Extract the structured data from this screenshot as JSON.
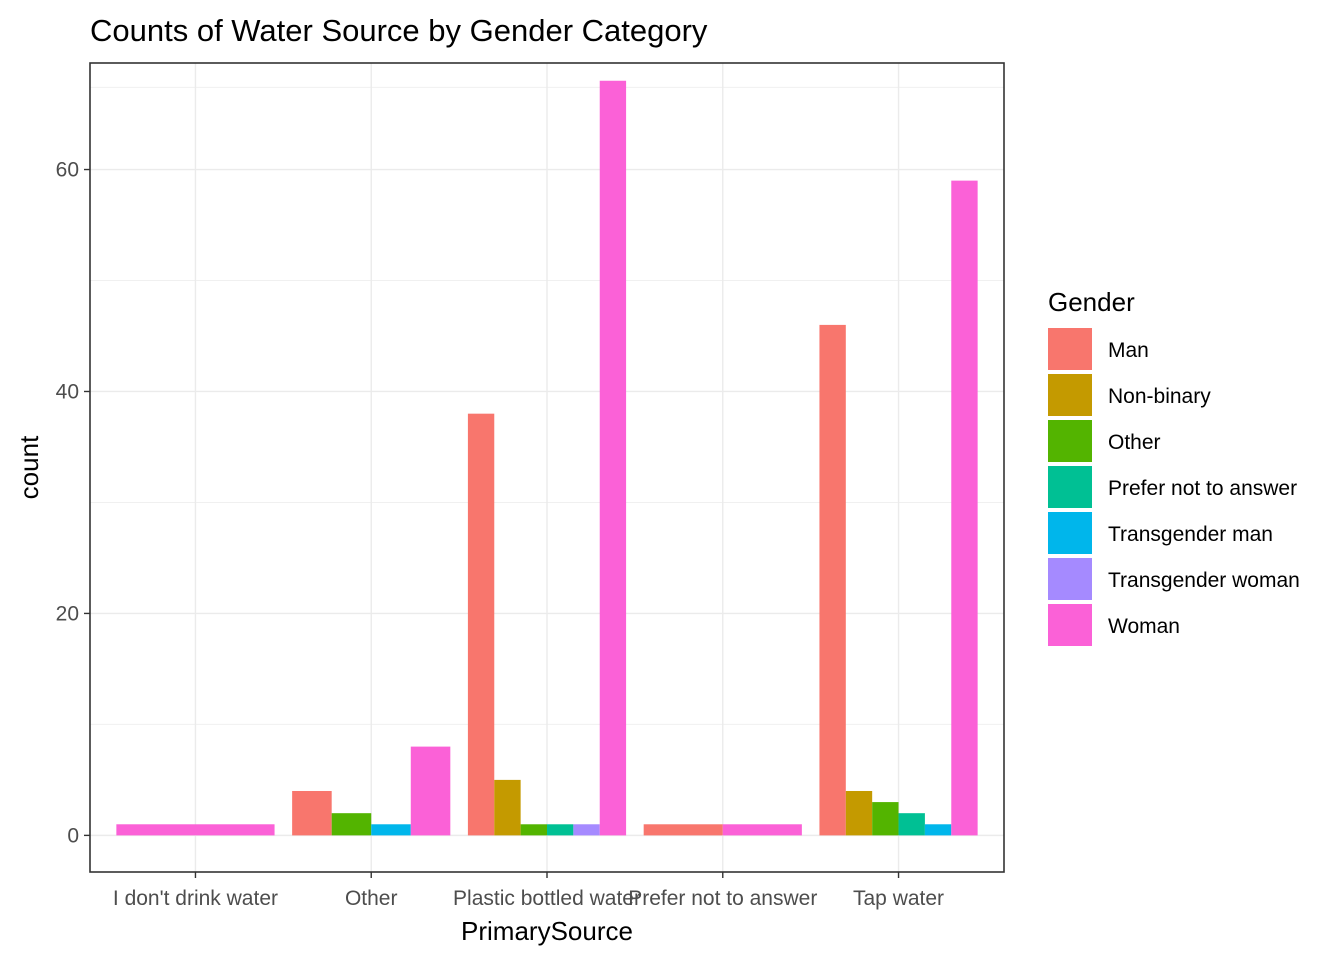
{
  "chart_data": {
    "type": "bar",
    "title": "Counts of Water Source by Gender Category",
    "xlabel": "PrimarySource",
    "ylabel": "count",
    "categories": [
      "I don't drink water",
      "Other",
      "Plastic bottled water",
      "Prefer not to answer",
      "Tap water"
    ],
    "y_ticks": [
      "0",
      "20",
      "40",
      "60"
    ],
    "ylim": [
      -3.3,
      69.6
    ],
    "grid": true,
    "legend": {
      "title": "Gender",
      "position": "right"
    },
    "series": [
      {
        "name": "Man",
        "color": "#F8766D"
      },
      {
        "name": "Non-binary",
        "color": "#C49A00"
      },
      {
        "name": "Other",
        "color": "#53B400"
      },
      {
        "name": "Prefer not to answer",
        "color": "#00C094"
      },
      {
        "name": "Transgender man",
        "color": "#00B6EB"
      },
      {
        "name": "Transgender woman",
        "color": "#A58AFF"
      },
      {
        "name": "Woman",
        "color": "#FB61D7"
      }
    ],
    "bars": [
      {
        "category": "I don't drink water",
        "groups": [
          {
            "series": "Woman",
            "value": 1
          }
        ]
      },
      {
        "category": "Other",
        "groups": [
          {
            "series": "Man",
            "value": 4
          },
          {
            "series": "Other",
            "value": 2
          },
          {
            "series": "Transgender man",
            "value": 1
          },
          {
            "series": "Woman",
            "value": 8
          }
        ]
      },
      {
        "category": "Plastic bottled water",
        "groups": [
          {
            "series": "Man",
            "value": 38
          },
          {
            "series": "Non-binary",
            "value": 5
          },
          {
            "series": "Other",
            "value": 1
          },
          {
            "series": "Prefer not to answer",
            "value": 1
          },
          {
            "series": "Transgender woman",
            "value": 1
          },
          {
            "series": "Woman",
            "value": 68
          }
        ]
      },
      {
        "category": "Prefer not to answer",
        "groups": [
          {
            "series": "Man",
            "value": 1
          },
          {
            "series": "Woman",
            "value": 1
          }
        ]
      },
      {
        "category": "Tap water",
        "groups": [
          {
            "series": "Man",
            "value": 46
          },
          {
            "series": "Non-binary",
            "value": 4
          },
          {
            "series": "Other",
            "value": 3
          },
          {
            "series": "Prefer not to answer",
            "value": 2
          },
          {
            "series": "Transgender man",
            "value": 1
          },
          {
            "series": "Woman",
            "value": 59
          }
        ]
      }
    ]
  }
}
